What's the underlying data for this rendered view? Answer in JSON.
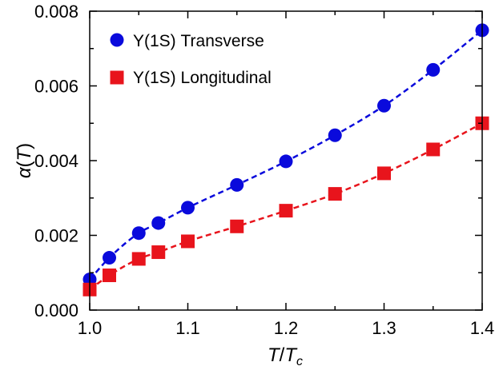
{
  "chart_data": {
    "type": "scatter",
    "title": "",
    "xlabel_main": "T",
    "xlabel_sep": "/",
    "xlabel_denom": "T",
    "xlabel_sub": "c",
    "ylabel_alpha": "α",
    "ylabel_open": "(",
    "ylabel_var": "T",
    "ylabel_close": ")",
    "xlim": [
      1.0,
      1.4
    ],
    "ylim": [
      0.0,
      0.008
    ],
    "xticks": [
      1.0,
      1.1,
      1.2,
      1.3,
      1.4
    ],
    "xtick_labels": [
      "1.0",
      "1.1",
      "1.2",
      "1.3",
      "1.4"
    ],
    "yticks": [
      0.0,
      0.002,
      0.004,
      0.006,
      0.008
    ],
    "ytick_labels": [
      "0.000",
      "0.002",
      "0.004",
      "0.006",
      "0.008"
    ],
    "grid": false,
    "legend_position": "top-left",
    "series": [
      {
        "name": "Υ(1S) Transverse",
        "marker": "circle",
        "color": "#0a0adc",
        "line": "dashed",
        "x": [
          1.0,
          1.02,
          1.05,
          1.07,
          1.1,
          1.15,
          1.2,
          1.25,
          1.3,
          1.35,
          1.4
        ],
        "y": [
          0.00082,
          0.0014,
          0.00206,
          0.00233,
          0.00274,
          0.00335,
          0.00398,
          0.00468,
          0.00547,
          0.00643,
          0.00749
        ]
      },
      {
        "name": "Υ(1S) Longitudinal",
        "marker": "square",
        "color": "#e8141c",
        "line": "dashed",
        "x": [
          1.0,
          1.02,
          1.05,
          1.07,
          1.1,
          1.15,
          1.2,
          1.25,
          1.3,
          1.35,
          1.4
        ],
        "y": [
          0.00055,
          0.00093,
          0.00137,
          0.00155,
          0.00184,
          0.00224,
          0.00266,
          0.00311,
          0.00366,
          0.0043,
          0.005
        ]
      }
    ]
  }
}
